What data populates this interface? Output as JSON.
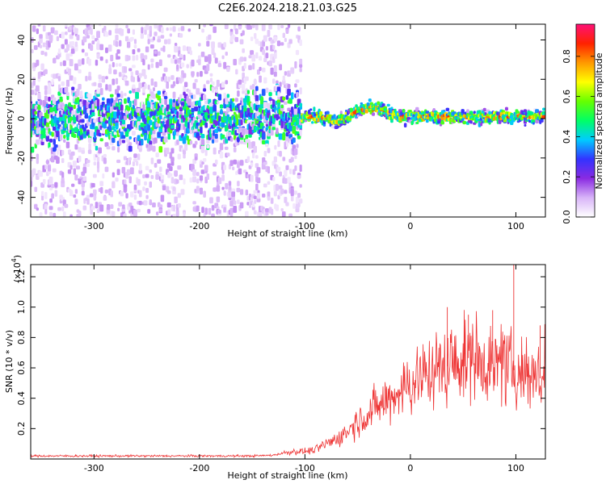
{
  "title": "C2E6.2024.218.21.03.G25",
  "colors": {
    "line": "#ee3333",
    "axis": "#000000",
    "background": "#ffffff"
  },
  "chart_data": [
    {
      "type": "heatmap",
      "xlabel": "Height of straight line (km)",
      "ylabel": "Frequency (Hz)",
      "xlim": [
        -360,
        128
      ],
      "ylim": [
        -50,
        48
      ],
      "x_ticks": [
        -300,
        -200,
        -100,
        0,
        100
      ],
      "y_ticks": [
        -40,
        -20,
        0,
        20,
        40
      ],
      "colorbar": {
        "label": "Normalized spectral amplitude",
        "range": [
          0,
          0.96
        ],
        "ticks": [
          "0.0",
          "0.2",
          "0.4",
          "0.6",
          "0.8"
        ],
        "tick_values": [
          0,
          0.2,
          0.4,
          0.6,
          0.8
        ],
        "colormap": [
          "#ffffff",
          "#d8b4f8",
          "#8a2be2",
          "#3333ff",
          "#00ccff",
          "#00ff66",
          "#66ff00",
          "#ffff00",
          "#ff9900",
          "#ff2200",
          "#ff1177"
        ]
      },
      "ridge": {
        "x": [
          -360,
          -300,
          -250,
          -200,
          -150,
          -125,
          -105,
          -90,
          -80,
          -70,
          -60,
          -50,
          -40,
          -30,
          -25,
          -20,
          -10,
          0,
          20,
          40,
          60,
          80,
          100,
          128
        ],
        "frequency": [
          0,
          0,
          0,
          0,
          0,
          1,
          1,
          1,
          0,
          -1,
          1,
          4,
          5,
          5,
          4,
          2,
          1,
          1,
          1,
          1,
          1,
          1,
          1,
          1
        ]
      }
    },
    {
      "type": "line",
      "xlabel": "Height of straight line (km)",
      "ylabel": "SNR (10 * v/v)",
      "y_scale_label": "(x10",
      "y_scale_exponent": "4",
      "y_scale_close": ")",
      "xlim": [
        -360,
        128
      ],
      "ylim": [
        0,
        1.28
      ],
      "x_ticks": [
        -300,
        -200,
        -100,
        0,
        100
      ],
      "y_ticks": [
        "0.2",
        "0.4",
        "0.6",
        "0.8",
        "1.0",
        "1.2"
      ],
      "y_tick_values": [
        0.2,
        0.4,
        0.6,
        0.8,
        1.0,
        1.2
      ],
      "series": [
        {
          "x": [
            -360,
            -300,
            -250,
            -200,
            -150,
            -130,
            -120,
            -110,
            -100,
            -90,
            -80,
            -70,
            -60,
            -50,
            -40,
            -30,
            -20,
            -10,
            0,
            10,
            20,
            30,
            40,
            50,
            60,
            70,
            80,
            90,
            100,
            110,
            120,
            128
          ],
          "values": [
            0.02,
            0.02,
            0.02,
            0.02,
            0.02,
            0.025,
            0.04,
            0.05,
            0.05,
            0.06,
            0.1,
            0.13,
            0.18,
            0.25,
            0.3,
            0.35,
            0.4,
            0.45,
            0.5,
            0.55,
            0.58,
            0.6,
            0.62,
            0.65,
            0.68,
            0.65,
            0.62,
            0.6,
            0.58,
            0.56,
            0.55,
            0.5
          ]
        }
      ],
      "peaks": [
        {
          "x": 35,
          "value": 1.0
        },
        {
          "x": 55,
          "value": 0.95
        },
        {
          "x": 78,
          "value": 0.98
        },
        {
          "x": 98,
          "value": 1.28
        },
        {
          "x": 123,
          "value": 0.88
        }
      ]
    }
  ]
}
